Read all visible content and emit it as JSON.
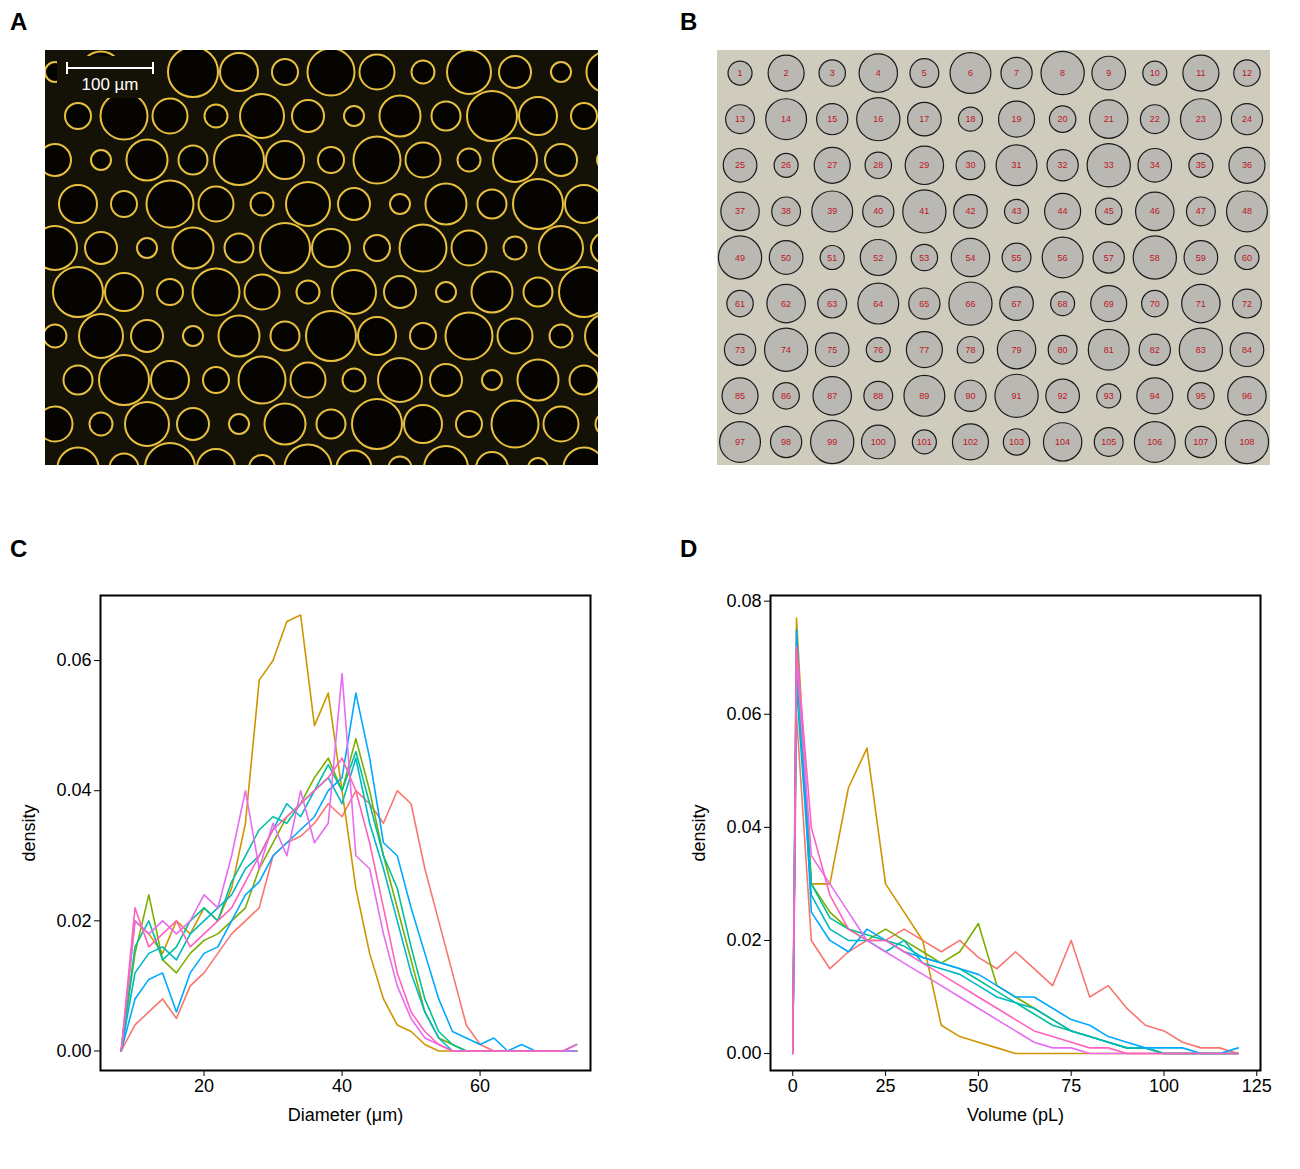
{
  "images": [
    {
      "panel_label": "A",
      "scale_bar": "100 µm"
    },
    {
      "panel_label": "B",
      "droplet_labels": [
        1,
        2,
        3,
        4,
        5,
        6,
        7,
        8,
        9,
        10,
        11,
        12,
        13,
        14,
        15,
        16,
        17,
        18,
        19,
        20,
        21,
        22,
        23,
        24,
        25,
        26,
        27,
        28,
        29,
        30,
        31,
        32,
        33,
        34,
        35,
        36,
        37,
        38,
        39,
        40,
        41,
        42,
        43,
        44,
        45,
        46,
        47,
        48,
        49,
        50,
        51,
        52,
        53,
        54,
        55,
        56,
        57,
        58,
        59,
        60,
        61,
        62,
        63,
        64,
        65,
        66,
        67,
        68,
        69,
        70,
        71,
        72,
        73,
        74,
        75,
        76,
        77,
        78,
        79,
        80,
        81,
        82,
        83,
        84,
        85,
        86,
        87,
        88,
        89,
        90,
        91,
        92,
        93,
        94,
        95,
        96,
        97,
        98,
        99,
        100,
        101,
        102,
        103,
        104,
        105,
        106,
        107,
        108
      ]
    }
  ],
  "chart_data": [
    {
      "panel_label": "C",
      "type": "line",
      "x_label": "Diameter (μm)",
      "y_label": "density",
      "x": [
        8,
        10,
        12,
        14,
        16,
        18,
        20,
        22,
        24,
        26,
        28,
        30,
        32,
        34,
        36,
        38,
        40,
        42,
        44,
        46,
        48,
        50,
        52,
        54,
        56,
        58,
        60,
        62,
        64,
        66,
        68,
        70,
        72,
        74
      ],
      "xlim": [
        5,
        76
      ],
      "xticks": [
        20,
        40,
        60
      ],
      "ylim": [
        -0.003,
        0.07
      ],
      "yticks": [
        {
          "value": 0,
          "label": "0.00"
        },
        {
          "value": 0.02,
          "label": "0.02"
        },
        {
          "value": 0.04,
          "label": "0.04"
        },
        {
          "value": 0.06,
          "label": "0.06"
        }
      ],
      "series": [
        {
          "color": "#F8766D",
          "values": [
            0,
            0.004,
            0.006,
            0.008,
            0.005,
            0.01,
            0.012,
            0.015,
            0.018,
            0.02,
            0.022,
            0.03,
            0.032,
            0.033,
            0.035,
            0.038,
            0.036,
            0.04,
            0.038,
            0.035,
            0.04,
            0.038,
            0.028,
            0.02,
            0.012,
            0.004,
            0.001,
            0,
            0,
            0,
            0,
            0,
            0,
            0
          ]
        },
        {
          "color": "#CD9600",
          "values": [
            0,
            0.02,
            0.018,
            0.015,
            0.02,
            0.018,
            0.022,
            0.02,
            0.025,
            0.035,
            0.057,
            0.06,
            0.066,
            0.067,
            0.05,
            0.055,
            0.04,
            0.025,
            0.015,
            0.008,
            0.004,
            0.003,
            0.001,
            0,
            0,
            0,
            0,
            0,
            0,
            0,
            0,
            0,
            0,
            0
          ]
        },
        {
          "color": "#7CAE00",
          "values": [
            0,
            0.015,
            0.024,
            0.014,
            0.012,
            0.015,
            0.017,
            0.018,
            0.02,
            0.022,
            0.028,
            0.032,
            0.036,
            0.038,
            0.042,
            0.045,
            0.04,
            0.048,
            0.04,
            0.03,
            0.022,
            0.014,
            0.006,
            0.002,
            0.001,
            0,
            0,
            0,
            0,
            0,
            0,
            0,
            0,
            0
          ]
        },
        {
          "color": "#00C19A",
          "values": [
            0,
            0.016,
            0.02,
            0.014,
            0.016,
            0.02,
            0.022,
            0.02,
            0.026,
            0.03,
            0.034,
            0.036,
            0.035,
            0.038,
            0.04,
            0.044,
            0.04,
            0.046,
            0.038,
            0.03,
            0.025,
            0.016,
            0.008,
            0.003,
            0.001,
            0,
            0,
            0,
            0,
            0,
            0,
            0,
            0,
            0
          ]
        },
        {
          "color": "#00B8C4",
          "values": [
            0,
            0.012,
            0.015,
            0.016,
            0.014,
            0.018,
            0.02,
            0.022,
            0.024,
            0.028,
            0.03,
            0.034,
            0.038,
            0.036,
            0.04,
            0.042,
            0.038,
            0.045,
            0.035,
            0.028,
            0.02,
            0.012,
            0.006,
            0.002,
            0,
            0,
            0,
            0,
            0,
            0,
            0,
            0,
            0,
            0
          ]
        },
        {
          "color": "#00A9FF",
          "values": [
            0,
            0.008,
            0.011,
            0.012,
            0.006,
            0.012,
            0.015,
            0.016,
            0.02,
            0.024,
            0.026,
            0.03,
            0.032,
            0.034,
            0.036,
            0.04,
            0.042,
            0.055,
            0.045,
            0.032,
            0.03,
            0.022,
            0.015,
            0.008,
            0.003,
            0.002,
            0.001,
            0.002,
            0,
            0.001,
            0,
            0,
            0,
            0.001
          ]
        },
        {
          "color": "#E76BF3",
          "values": [
            0,
            0.02,
            0.018,
            0.02,
            0.018,
            0.02,
            0.024,
            0.022,
            0.03,
            0.04,
            0.028,
            0.035,
            0.03,
            0.04,
            0.032,
            0.035,
            0.058,
            0.03,
            0.028,
            0.018,
            0.01,
            0.005,
            0.002,
            0.001,
            0,
            0,
            0,
            0,
            0,
            0,
            0,
            0,
            0,
            0
          ]
        },
        {
          "color": "#FF62BC",
          "values": [
            0,
            0.022,
            0.016,
            0.018,
            0.02,
            0.016,
            0.018,
            0.02,
            0.022,
            0.026,
            0.03,
            0.034,
            0.036,
            0.038,
            0.04,
            0.042,
            0.045,
            0.04,
            0.032,
            0.022,
            0.012,
            0.006,
            0.003,
            0.001,
            0,
            0,
            0,
            0,
            0,
            0,
            0,
            0,
            0,
            0.001
          ]
        }
      ]
    },
    {
      "panel_label": "D",
      "type": "line",
      "x_label": "Volume (pL)",
      "y_label": "density",
      "x": [
        0,
        1,
        5,
        10,
        15,
        20,
        25,
        30,
        35,
        40,
        45,
        50,
        55,
        60,
        65,
        70,
        75,
        80,
        85,
        90,
        95,
        100,
        105,
        110,
        115,
        120
      ],
      "xlim": [
        -6,
        126
      ],
      "xticks": [
        0,
        25,
        50,
        75,
        100,
        125
      ],
      "ylim": [
        -0.003,
        0.081
      ],
      "yticks": [
        {
          "value": 0,
          "label": "0.00"
        },
        {
          "value": 0.02,
          "label": "0.02"
        },
        {
          "value": 0.04,
          "label": "0.04"
        },
        {
          "value": 0.06,
          "label": "0.06"
        },
        {
          "value": 0.08,
          "label": "0.08"
        }
      ],
      "series": [
        {
          "color": "#F8766D",
          "values": [
            0,
            0.06,
            0.02,
            0.015,
            0.018,
            0.02,
            0.02,
            0.022,
            0.02,
            0.018,
            0.02,
            0.017,
            0.015,
            0.018,
            0.015,
            0.012,
            0.02,
            0.01,
            0.012,
            0.008,
            0.005,
            0.004,
            0.002,
            0.001,
            0.001,
            0
          ]
        },
        {
          "color": "#CD9600",
          "values": [
            0,
            0.077,
            0.03,
            0.03,
            0.047,
            0.054,
            0.03,
            0.025,
            0.02,
            0.005,
            0.003,
            0.002,
            0.001,
            0,
            0,
            0,
            0,
            0,
            0,
            0,
            0,
            0,
            0,
            0,
            0,
            0
          ]
        },
        {
          "color": "#7CAE00",
          "values": [
            0,
            0.07,
            0.03,
            0.025,
            0.022,
            0.02,
            0.022,
            0.02,
            0.018,
            0.016,
            0.018,
            0.023,
            0.012,
            0.01,
            0.008,
            0.006,
            0.004,
            0.003,
            0.002,
            0.001,
            0.001,
            0,
            0,
            0,
            0,
            0
          ]
        },
        {
          "color": "#00C19A",
          "values": [
            0,
            0.068,
            0.03,
            0.024,
            0.022,
            0.021,
            0.02,
            0.019,
            0.017,
            0.016,
            0.015,
            0.013,
            0.011,
            0.009,
            0.007,
            0.005,
            0.004,
            0.003,
            0.002,
            0.001,
            0.001,
            0,
            0,
            0,
            0,
            0
          ]
        },
        {
          "color": "#00B8C4",
          "values": [
            0,
            0.065,
            0.028,
            0.022,
            0.02,
            0.02,
            0.018,
            0.02,
            0.016,
            0.015,
            0.014,
            0.012,
            0.01,
            0.009,
            0.008,
            0.006,
            0.004,
            0.003,
            0.002,
            0.001,
            0.001,
            0,
            0,
            0,
            0,
            0
          ]
        },
        {
          "color": "#00A9FF",
          "values": [
            0,
            0.075,
            0.025,
            0.02,
            0.018,
            0.022,
            0.02,
            0.018,
            0.017,
            0.016,
            0.015,
            0.014,
            0.012,
            0.01,
            0.01,
            0.008,
            0.006,
            0.005,
            0.003,
            0.002,
            0.001,
            0.001,
            0.001,
            0,
            0,
            0.001
          ]
        },
        {
          "color": "#E76BF3",
          "values": [
            0,
            0.07,
            0.035,
            0.03,
            0.025,
            0.02,
            0.018,
            0.016,
            0.014,
            0.012,
            0.01,
            0.008,
            0.006,
            0.004,
            0.002,
            0.001,
            0.001,
            0,
            0,
            0,
            0,
            0,
            0,
            0,
            0,
            0
          ]
        },
        {
          "color": "#FF62BC",
          "values": [
            0,
            0.072,
            0.04,
            0.028,
            0.022,
            0.02,
            0.02,
            0.018,
            0.016,
            0.014,
            0.012,
            0.01,
            0.008,
            0.006,
            0.004,
            0.003,
            0.002,
            0.001,
            0.001,
            0,
            0,
            0,
            0,
            0,
            0,
            0
          ]
        }
      ]
    }
  ]
}
